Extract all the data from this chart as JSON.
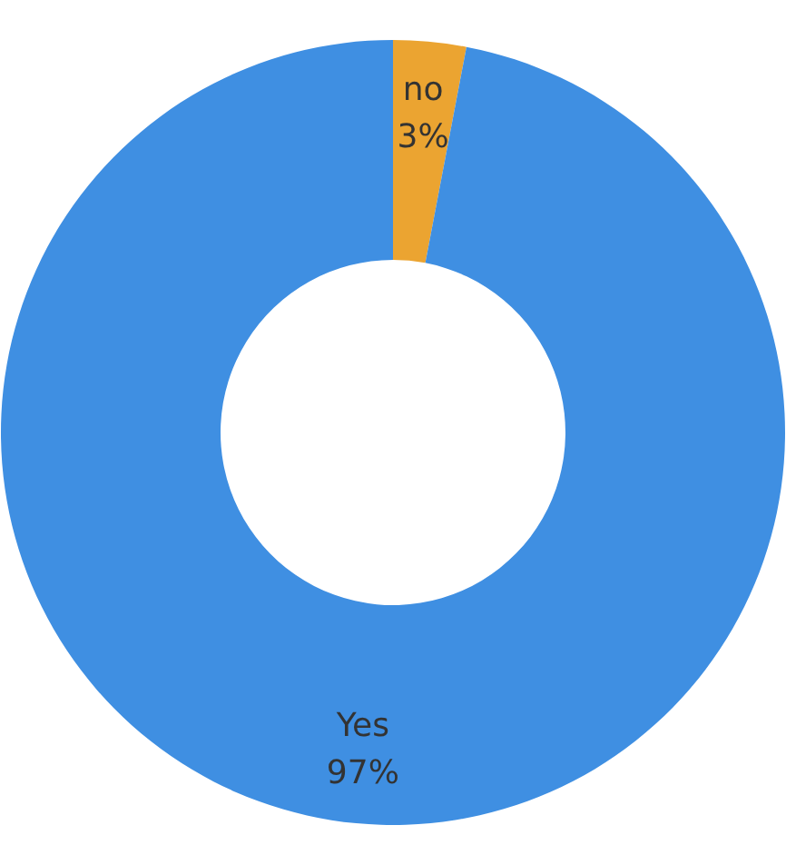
{
  "chart_data": {
    "type": "donut",
    "categories": [
      "no",
      "Yes"
    ],
    "values": [
      3,
      97
    ],
    "colors": [
      "#eba431",
      "#3f8fe2"
    ],
    "value_labels": [
      "3%",
      "97%"
    ]
  }
}
